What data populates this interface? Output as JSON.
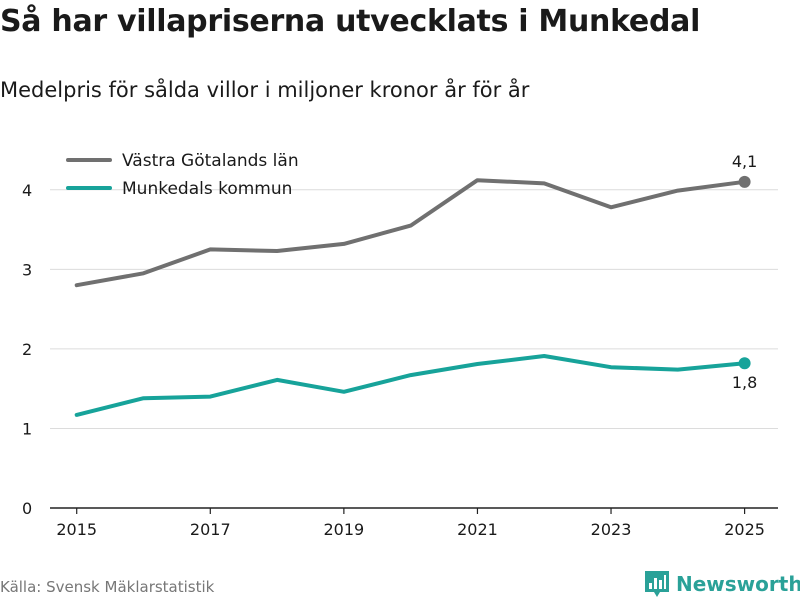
{
  "title": "Så har villapriserna utvecklats i Munkedal",
  "subtitle": "Medelpris för sålda villor i miljoner kronor år för år",
  "source": "Källa: Svensk Mäklarstatistik",
  "brand": {
    "name": "Newsworthy",
    "color": "#2aa198"
  },
  "chart_data": {
    "type": "line",
    "title": "Så har villapriserna utvecklats i Munkedal",
    "subtitle": "Medelpris för sålda villor i miljoner kronor år för år",
    "xlabel": "",
    "ylabel": "",
    "x": [
      2015,
      2016,
      2017,
      2018,
      2019,
      2020,
      2021,
      2022,
      2023,
      2024,
      2025
    ],
    "xticks": [
      2015,
      2017,
      2019,
      2021,
      2023,
      2025
    ],
    "yticks": [
      0,
      1,
      2,
      3,
      4
    ],
    "ylim": [
      0,
      4.5
    ],
    "xlim": [
      2014.6,
      2025.5
    ],
    "grid": true,
    "legend_position": "top-left",
    "series": [
      {
        "name": "Västra Götalands län",
        "color": "#707070",
        "values": [
          2.8,
          2.95,
          3.25,
          3.23,
          3.32,
          3.55,
          4.12,
          4.08,
          3.78,
          3.99,
          4.1
        ],
        "end_label": "4,1",
        "end_label_position": "above"
      },
      {
        "name": "Munkedals kommun",
        "color": "#17a39a",
        "values": [
          1.17,
          1.38,
          1.4,
          1.61,
          1.46,
          1.67,
          1.81,
          1.91,
          1.77,
          1.74,
          1.82
        ],
        "end_label": "1,8",
        "end_label_position": "below"
      }
    ]
  }
}
